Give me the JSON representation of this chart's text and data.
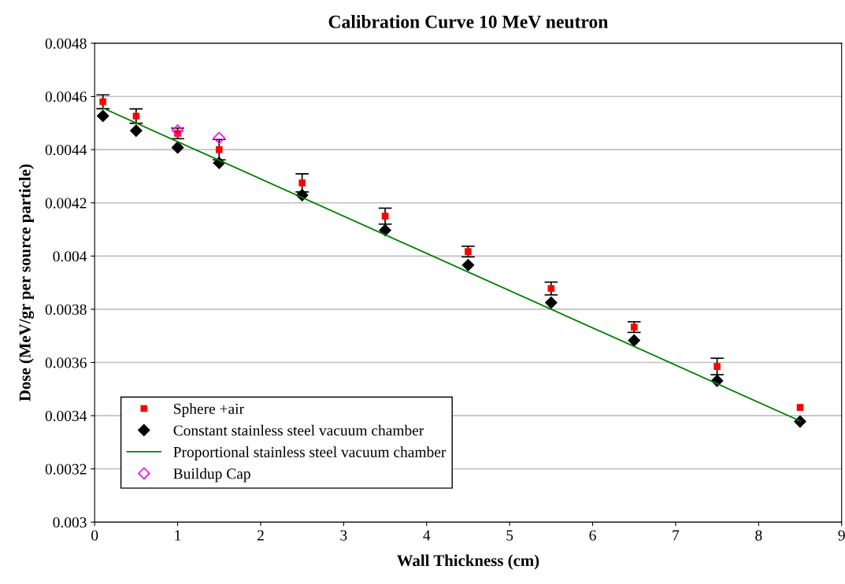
{
  "chart_data": {
    "type": "scatter",
    "title": "Calibration Curve 10 MeV neutron",
    "xlabel": "Wall Thickness (cm)",
    "ylabel": "Dose (MeV/gr per source particle)",
    "xlim": [
      0,
      9
    ],
    "xticks": [
      0,
      1,
      2,
      3,
      4,
      5,
      6,
      7,
      8,
      9
    ],
    "ylim": [
      0.003,
      0.0048
    ],
    "yticks": [
      0.003,
      0.0032,
      0.0034,
      0.0036,
      0.0038,
      0.004,
      0.0042,
      0.0044,
      0.0046,
      0.0048
    ],
    "grid": "y",
    "legend": "bottom left",
    "series": [
      {
        "name": "Sphere +air",
        "marker": "square",
        "color": "#ff0000",
        "x": [
          0.1,
          0.5,
          1,
          1.5,
          2.5,
          3.5,
          4.5,
          5.5,
          6.5,
          7.5,
          8.5
        ],
        "values": [
          0.00458,
          0.004526,
          0.004461,
          0.0044,
          0.004275,
          0.00415,
          0.004017,
          0.003878,
          0.003733,
          0.003585,
          0.003431
        ],
        "errors": [
          2.6e-05,
          2.7e-05,
          2e-05,
          3.8e-05,
          3.4e-05,
          3e-05,
          2e-05,
          2.4e-05,
          2e-05,
          3.1e-05,
          null
        ]
      },
      {
        "name": "Constant stainless steel vacuum chamber",
        "marker": "diamond",
        "color": "#000000",
        "x": [
          0.1,
          0.5,
          1,
          1.5,
          2.5,
          3.5,
          4.5,
          5.5,
          6.5,
          7.5,
          8.5
        ],
        "values": [
          0.004527,
          0.004471,
          0.004408,
          0.00435,
          0.004229,
          0.004097,
          0.003966,
          0.003825,
          0.003683,
          0.003531,
          0.003378
        ]
      },
      {
        "name": "Proportional stainless steel vacuum chamber",
        "type": "line",
        "line_style": "solid",
        "color": "#008000",
        "x": [
          0.1,
          8.5
        ],
        "values": [
          0.004556,
          0.00338
        ]
      },
      {
        "name": "Buildup Cap",
        "marker": "diamond",
        "color": "#ff00ff",
        "x": [
          1,
          1.5
        ],
        "values": [
          0.004472,
          0.004444
        ]
      }
    ]
  }
}
